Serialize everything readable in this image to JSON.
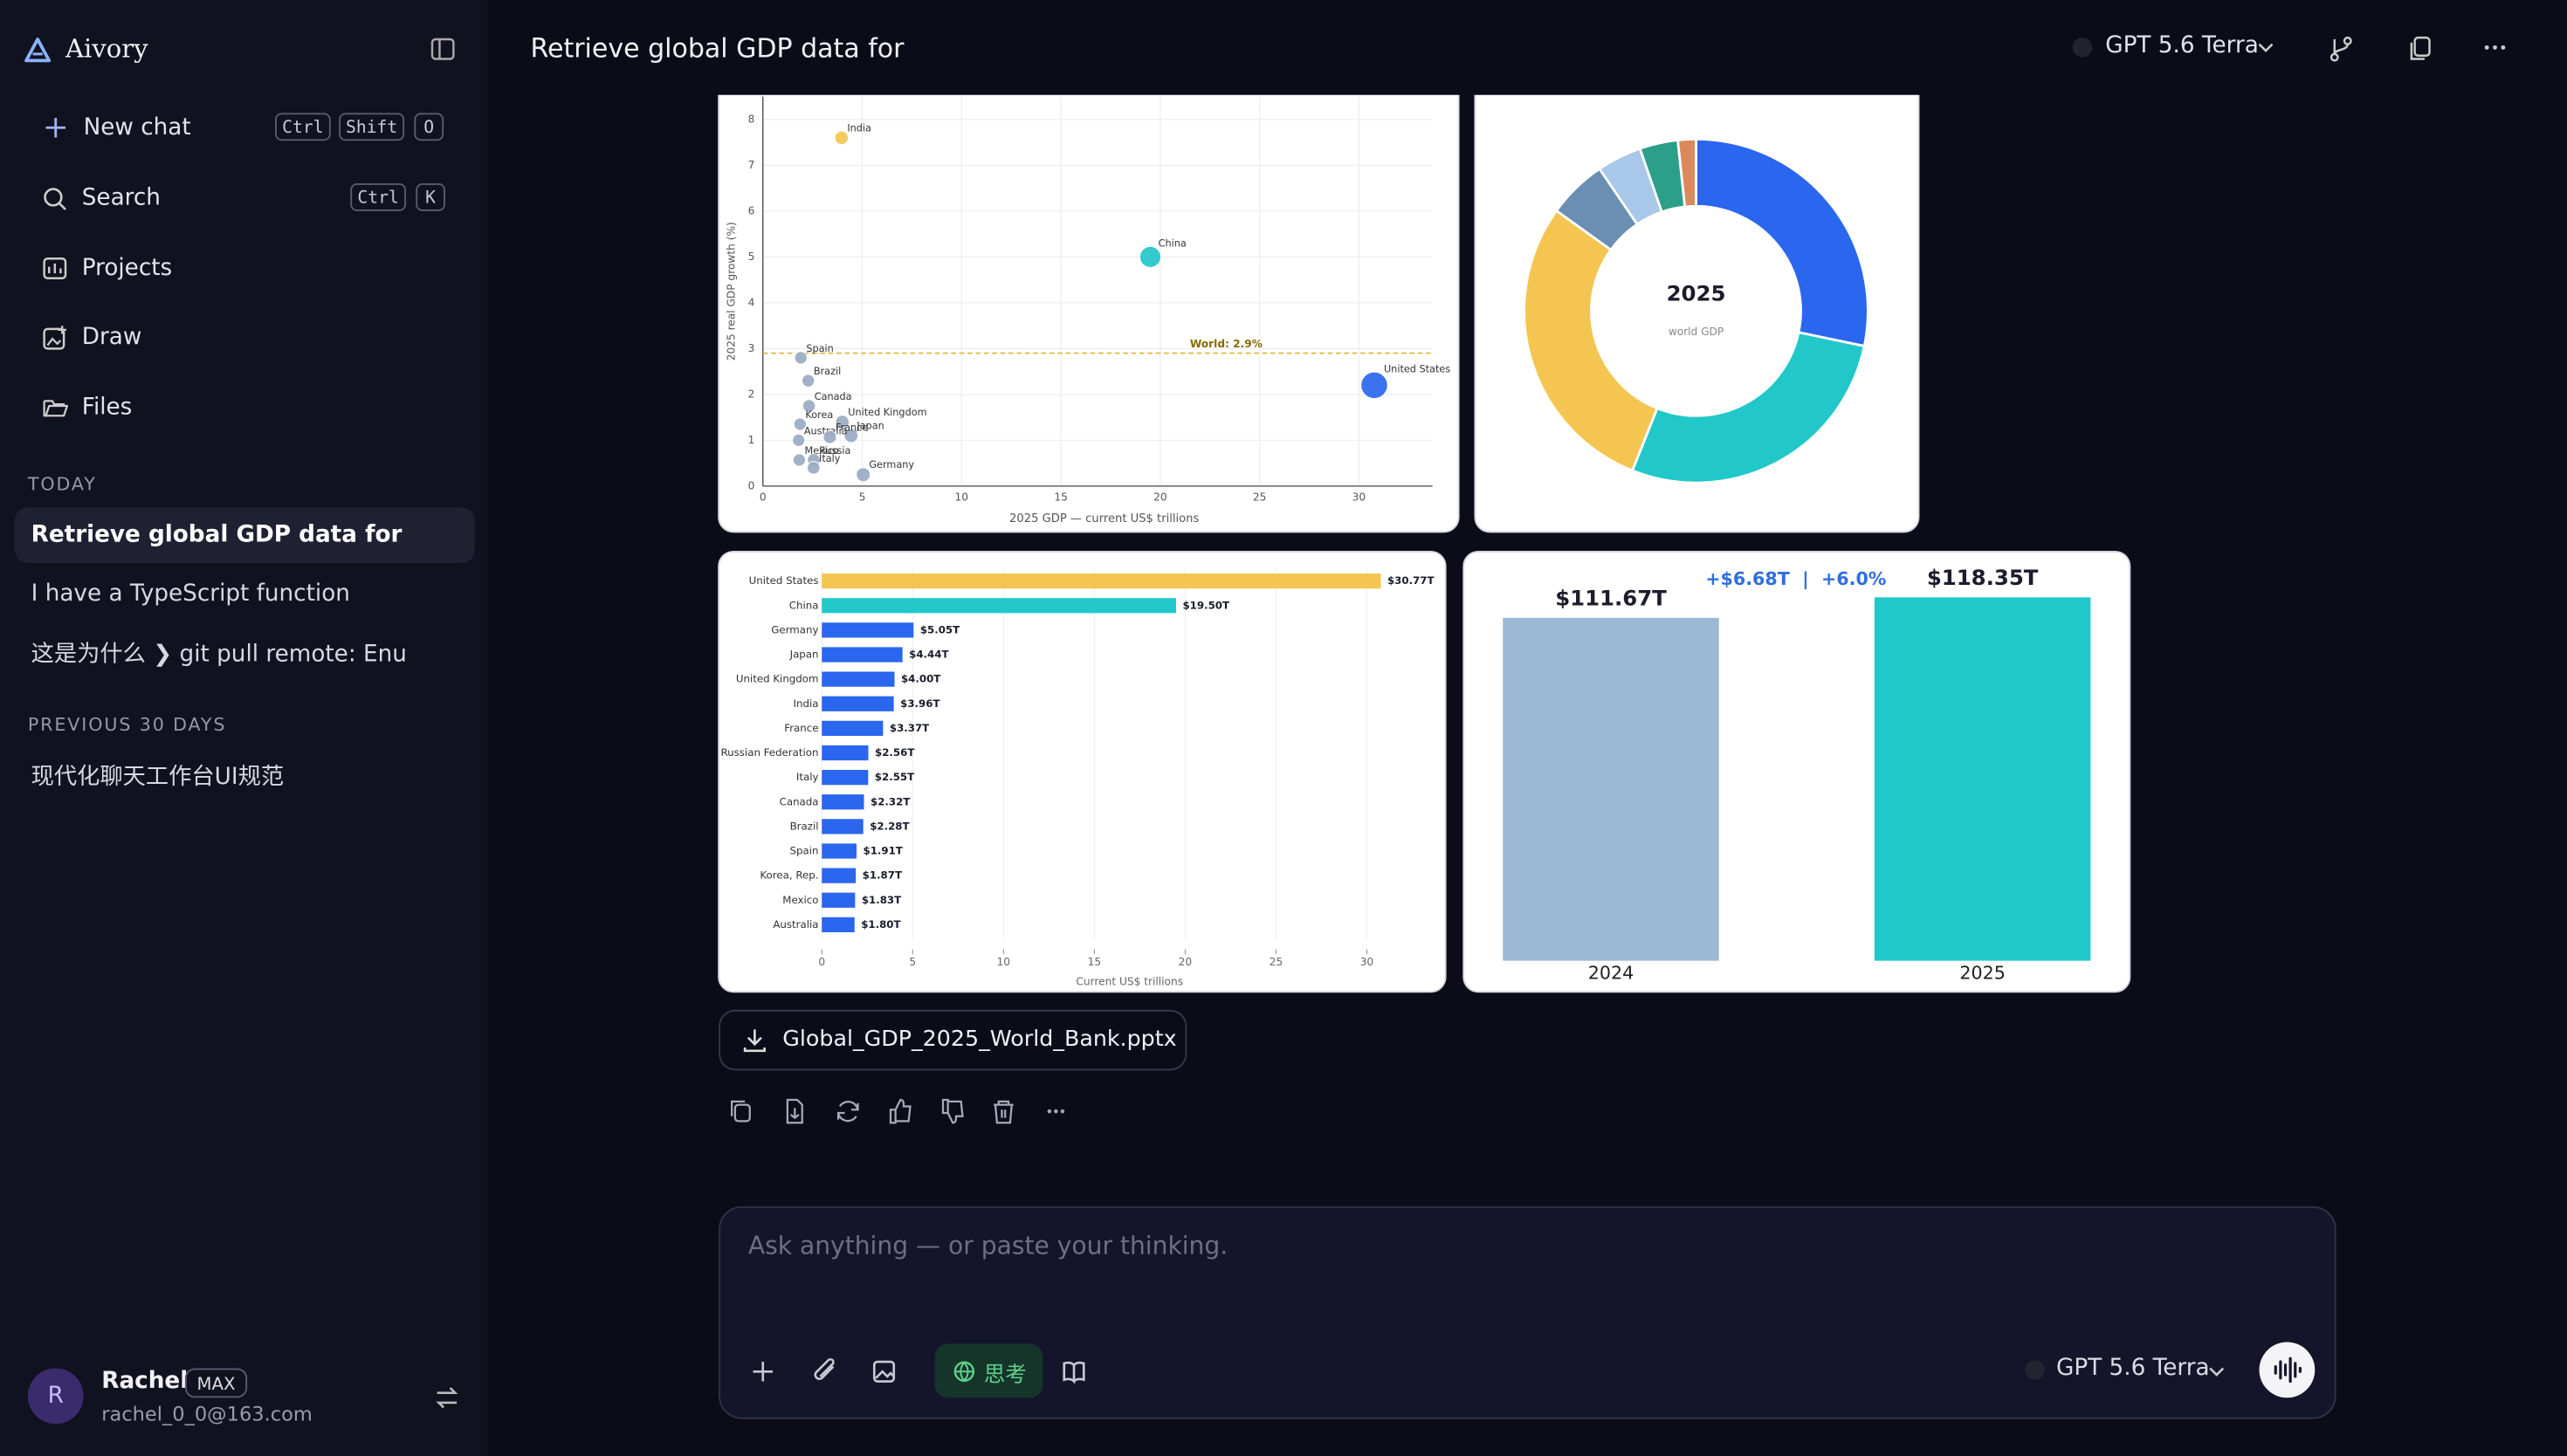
{
  "sidebar": {
    "brand": "Aivory",
    "nav": [
      {
        "label": "New chat",
        "keys": [
          "Ctrl",
          "Shift",
          "O"
        ]
      },
      {
        "label": "Search",
        "keys": [
          "Ctrl",
          "K"
        ]
      },
      {
        "label": "Projects"
      },
      {
        "label": "Draw"
      },
      {
        "label": "Files"
      }
    ],
    "sections": [
      {
        "title": "TODAY",
        "items": [
          "Retrieve global GDP data for",
          "I have a TypeScript function",
          "这是为什么 ❯ git pull remote: Enu"
        ]
      },
      {
        "title": "PREVIOUS 30 DAYS",
        "items": [
          "现代化聊天工作台UI规范"
        ]
      }
    ],
    "user": {
      "initial": "R",
      "name": "Rachel",
      "badge": "MAX",
      "email": "rachel_0_0@163.com"
    }
  },
  "header": {
    "title": "Retrieve global GDP data for",
    "model": "GPT 5.6 Terra"
  },
  "chart_data": [
    {
      "type": "scatter",
      "xlabel": "2025 GDP — current US$ trillions",
      "ylabel": "2025 real GDP growth (%)",
      "labels": [
        "India",
        "China",
        "United States",
        "Spain",
        "Brazil",
        "Canada",
        "United Kingdom",
        "Japan",
        "Korea",
        "Australia",
        "France",
        "Mexico",
        "Russia",
        "Italy",
        "Germany"
      ],
      "x": [
        3.96,
        19.5,
        30.77,
        1.91,
        2.28,
        2.32,
        4.0,
        4.44,
        1.87,
        1.8,
        3.37,
        1.83,
        2.56,
        2.55,
        5.05
      ],
      "values": [
        7.6,
        5.0,
        2.2,
        2.8,
        2.3,
        1.75,
        1.4,
        1.1,
        1.35,
        1.0,
        1.07,
        0.57,
        0.57,
        0.4,
        0.25
      ],
      "colors": [
        "#f4c551",
        "#22c7c9",
        "#2a66ee",
        "#9aaac2",
        "#9aaac2",
        "#9aaac2",
        "#9aaac2",
        "#9aaac2",
        "#9aaac2",
        "#9aaac2",
        "#9aaac2",
        "#9aaac2",
        "#9aaac2",
        "#9aaac2",
        "#9aaac2"
      ],
      "xlim": [
        0,
        33.7
      ],
      "ylim": [
        0,
        8.5
      ],
      "xticks": [
        0,
        5,
        10,
        15,
        20,
        25,
        30
      ],
      "yticks": [
        0,
        1,
        2,
        3,
        4,
        5,
        6,
        7,
        8
      ],
      "grid": true,
      "reference_line": {
        "value": 2.9,
        "label": "World: 2.9%",
        "color": "#e3b53c"
      }
    },
    {
      "type": "pie",
      "title": "2025",
      "subtitle": "world GDP",
      "values": [
        28.3,
        27.8,
        28.9,
        5.6,
        4.2,
        3.6,
        1.7
      ],
      "colors": [
        "#2a66ee",
        "#22c7c9",
        "#f4c551",
        "#6a8fb2",
        "#a9c7e8",
        "#2b9f8a",
        "#da8a5a"
      ]
    },
    {
      "type": "barh",
      "categories": [
        "United States",
        "China",
        "Germany",
        "Japan",
        "United Kingdom",
        "India",
        "France",
        "Russian Federation",
        "Italy",
        "Canada",
        "Brazil",
        "Spain",
        "Korea, Rep.",
        "Mexico",
        "Australia"
      ],
      "values": [
        30.77,
        19.5,
        5.05,
        4.44,
        4.0,
        3.96,
        3.37,
        2.56,
        2.55,
        2.32,
        2.28,
        1.91,
        1.87,
        1.83,
        1.8
      ],
      "value_labels": [
        "$30.77T",
        "$19.50T",
        "$5.05T",
        "$4.44T",
        "$4.00T",
        "$3.96T",
        "$3.37T",
        "$2.56T",
        "$2.55T",
        "$2.32T",
        "$2.28T",
        "$1.91T",
        "$1.87T",
        "$1.83T",
        "$1.80T"
      ],
      "colors": [
        "#f4c551",
        "#22c7c9",
        "#2a66ee",
        "#2a66ee",
        "#2a66ee",
        "#2a66ee",
        "#2a66ee",
        "#2a66ee",
        "#2a66ee",
        "#2a66ee",
        "#2a66ee",
        "#2a66ee",
        "#2a66ee",
        "#2a66ee",
        "#2a66ee"
      ],
      "xlabel": "Current US$ trillions",
      "xlim": [
        0,
        31
      ],
      "xticks": [
        0,
        5,
        10,
        15,
        20,
        25,
        30
      ],
      "grid": true
    },
    {
      "type": "bar",
      "categories": [
        "2024",
        "2025"
      ],
      "values": [
        111.67,
        118.35
      ],
      "value_labels": [
        "$111.67T",
        "$118.35T"
      ],
      "colors": [
        "#9db8d4",
        "#20c9c9"
      ],
      "ylim": [
        0,
        125
      ],
      "annotation": "+$6.68T  |  +6.0%"
    }
  ],
  "attachment": {
    "filename": "Global_GDP_2025_World_Bank.pptx"
  },
  "composer": {
    "placeholder": "Ask anything — or paste your thinking.",
    "think": "思考",
    "model": "GPT 5.6 Terra"
  }
}
